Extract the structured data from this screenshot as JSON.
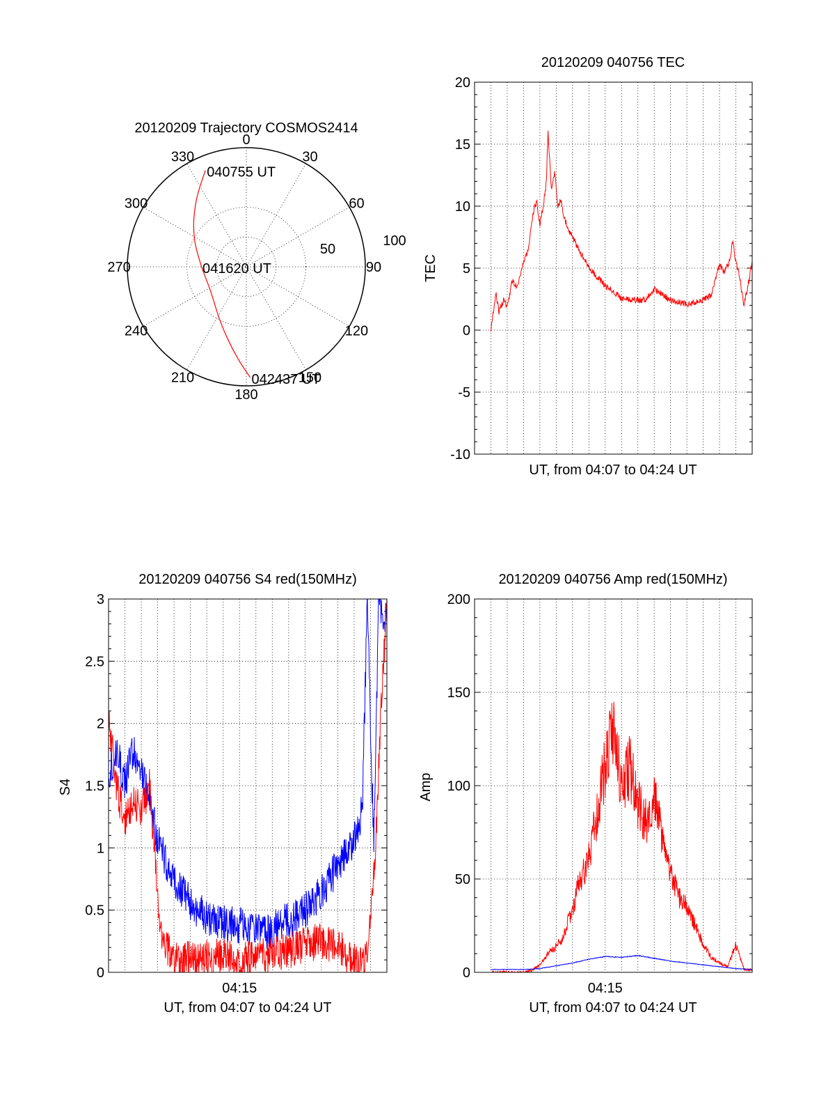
{
  "chart_data": [
    {
      "type": "polar",
      "title": "20120209 Trajectory COSMOS2414",
      "azimuth_labels": [
        "0",
        "30",
        "60",
        "90",
        "120",
        "150",
        "180",
        "210",
        "240",
        "270",
        "300",
        "330"
      ],
      "radial_labels": [
        "50",
        "100"
      ],
      "grid": true,
      "series": [
        {
          "color": "#ff0000",
          "points": [
            {
              "az": 337,
              "r": 88
            },
            {
              "az": 322,
              "r": 70
            },
            {
              "az": 300,
              "r": 52
            },
            {
              "az": 270,
              "r": 38
            },
            {
              "az": 236,
              "r": 36
            },
            {
              "az": 205,
              "r": 52
            },
            {
              "az": 187,
              "r": 75
            },
            {
              "az": 178,
              "r": 93
            }
          ]
        }
      ],
      "annotations": [
        {
          "text": "040755 UT",
          "az": 337,
          "r": 88
        },
        {
          "text": "041620 UT",
          "az": 270,
          "r": 38
        },
        {
          "text": "042437 UT",
          "az": 178,
          "r": 93
        }
      ]
    },
    {
      "type": "line",
      "title": "20120209 040756 TEC",
      "xlabel": "UT, from 04:07 to 04:24 UT",
      "ylabel": "TEC",
      "ylim": [
        -10,
        20
      ],
      "yticks": [
        "-10",
        "-5",
        "0",
        "5",
        "10",
        "15",
        "20"
      ],
      "grid": true,
      "series": [
        {
          "color": "#ff0000",
          "x": [
            1.0,
            1.3,
            1.5,
            1.8,
            2.0,
            2.3,
            2.6,
            3.0,
            3.3,
            3.6,
            3.8,
            4.0,
            4.2,
            4.4,
            4.5,
            4.7,
            4.9,
            5.1,
            5.3,
            5.5,
            5.8,
            6.2,
            7.0,
            8.0,
            9.0,
            10.0,
            10.5,
            11.0,
            11.5,
            12.0,
            13.0,
            13.8,
            14.5,
            15.0,
            15.3,
            15.6,
            15.8,
            16.0,
            16.2,
            16.5,
            16.8,
            17.0
          ],
          "y": [
            0.0,
            3.0,
            1.5,
            2.5,
            1.8,
            4.0,
            3.5,
            5.5,
            6.5,
            9.5,
            10.5,
            8.5,
            10.0,
            12.0,
            16.0,
            11.5,
            12.8,
            10.0,
            10.5,
            9.0,
            8.0,
            7.0,
            5.0,
            3.6,
            2.6,
            2.4,
            2.5,
            3.3,
            2.9,
            2.4,
            2.1,
            2.3,
            2.8,
            5.3,
            4.7,
            5.5,
            7.2,
            5.5,
            4.5,
            2.0,
            4.0,
            5.5
          ]
        }
      ]
    },
    {
      "type": "line",
      "title": "20120209 040756 S4 red(150MHz)",
      "xlabel": "UT, from 04:07 to 04:24 UT",
      "ylabel": "S4",
      "ylim": [
        0,
        3
      ],
      "yticks": [
        "0",
        "0.5",
        "1",
        "1.5",
        "2",
        "2.5",
        "3"
      ],
      "xticks": [
        "04:15"
      ],
      "grid": true,
      "series": [
        {
          "color": "#0000ff",
          "x": [
            0.0,
            0.5,
            1.0,
            1.5,
            2.0,
            2.5,
            3.0,
            3.5,
            4.0,
            4.5,
            5.0,
            5.5,
            6.0,
            6.5,
            7.0,
            7.5,
            8.0,
            8.5,
            9.0,
            9.5,
            10.0,
            10.5,
            11.0,
            11.5,
            12.0,
            12.5,
            13.0,
            13.5,
            14.0,
            14.5,
            15.0,
            15.5,
            15.8,
            16.2,
            16.5,
            17.0
          ],
          "y": [
            1.6,
            1.8,
            1.5,
            1.8,
            1.6,
            1.4,
            1.05,
            0.9,
            0.75,
            0.65,
            0.55,
            0.5,
            0.45,
            0.42,
            0.4,
            0.38,
            0.38,
            0.36,
            0.33,
            0.3,
            0.35,
            0.38,
            0.42,
            0.45,
            0.5,
            0.55,
            0.65,
            0.75,
            0.85,
            0.95,
            1.05,
            1.3,
            3.0,
            1.0,
            3.0,
            2.8
          ]
        },
        {
          "color": "#ff0000",
          "x": [
            0.0,
            0.5,
            1.0,
            1.5,
            2.0,
            2.5,
            2.8,
            3.0,
            3.2,
            3.5,
            4.0,
            5.0,
            6.0,
            7.0,
            8.0,
            9.0,
            10.0,
            11.0,
            12.0,
            13.0,
            14.0,
            14.5,
            15.0,
            15.5,
            15.8,
            16.0,
            16.3,
            16.6,
            17.0
          ],
          "y": [
            2.0,
            1.5,
            1.2,
            1.4,
            1.3,
            1.5,
            1.0,
            0.55,
            0.35,
            0.2,
            0.12,
            0.1,
            0.12,
            0.13,
            0.11,
            0.12,
            0.13,
            0.18,
            0.22,
            0.25,
            0.2,
            0.15,
            0.1,
            0.05,
            0.12,
            0.5,
            1.0,
            2.0,
            3.0
          ]
        }
      ]
    },
    {
      "type": "line",
      "title": "20120209 040756 Amp red(150MHz)",
      "xlabel": "UT, from 04:07 to 04:24 UT",
      "ylabel": "Amp",
      "ylim": [
        0,
        200
      ],
      "yticks": [
        "0",
        "50",
        "100",
        "150",
        "200"
      ],
      "xticks": [
        "04:15"
      ],
      "grid": true,
      "series": [
        {
          "color": "#ff0000",
          "x": [
            1.0,
            2.0,
            3.0,
            3.5,
            4.0,
            4.5,
            5.0,
            5.5,
            6.0,
            6.5,
            7.0,
            7.5,
            8.0,
            8.5,
            9.0,
            9.5,
            10.0,
            10.5,
            11.0,
            11.5,
            12.0,
            12.5,
            13.0,
            13.5,
            14.0,
            14.5,
            15.0,
            15.5,
            16.0,
            16.5,
            17.0
          ],
          "y": [
            0.0,
            0.0,
            0.0,
            1.0,
            4.0,
            10.0,
            14.0,
            20.0,
            35.0,
            50.0,
            60.0,
            85.0,
            110.0,
            130.0,
            100.0,
            110.0,
            90.0,
            80.0,
            95.0,
            70.0,
            55.0,
            40.0,
            35.0,
            25.0,
            15.0,
            8.0,
            5.0,
            3.0,
            15.0,
            2.0,
            1.0
          ]
        },
        {
          "color": "#0000ff",
          "x": [
            1.0,
            3.0,
            4.0,
            5.0,
            6.0,
            7.0,
            8.0,
            9.0,
            10.0,
            11.0,
            12.0,
            13.0,
            14.0,
            15.0,
            16.0,
            17.0
          ],
          "y": [
            1.5,
            1.5,
            2.0,
            3.5,
            5.0,
            7.0,
            8.5,
            8.0,
            9.0,
            7.5,
            6.0,
            5.0,
            4.0,
            3.0,
            2.0,
            1.5
          ]
        }
      ]
    }
  ]
}
